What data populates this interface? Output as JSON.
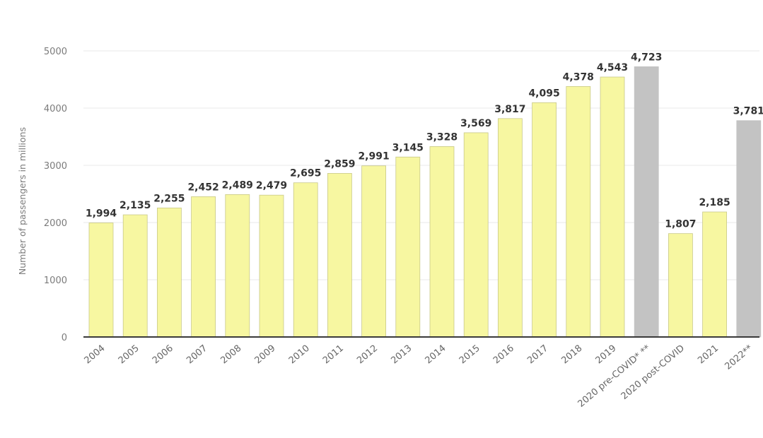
{
  "chart_data": {
    "type": "bar",
    "ylabel": "Number of passengers in millions",
    "ylim": [
      0,
      5000
    ],
    "yticks": [
      0,
      1000,
      2000,
      3000,
      4000,
      5000
    ],
    "grid": true,
    "colors": {
      "actual": "#f7f7a1",
      "actual_edge": "#c9c98a",
      "projected": "#c3c3c3",
      "axis": "#3a3a3a"
    },
    "categories": [
      "2004",
      "2005",
      "2006",
      "2007",
      "2008",
      "2009",
      "2010",
      "2011",
      "2012",
      "2013",
      "2014",
      "2015",
      "2016",
      "2017",
      "2018",
      "2019",
      "2020 pre-COVID* **",
      "2020 post-COVID",
      "2021",
      "2022**"
    ],
    "values": [
      1994,
      2135,
      2255,
      2452,
      2489,
      2479,
      2695,
      2859,
      2991,
      3145,
      3328,
      3569,
      3817,
      4095,
      4378,
      4543,
      4723,
      1807,
      2185,
      3781
    ],
    "value_labels": [
      "1,994",
      "2,135",
      "2,255",
      "2,452",
      "2,489",
      "2,479",
      "2,695",
      "2,859",
      "2,991",
      "3,145",
      "3,328",
      "3,569",
      "3,817",
      "4,095",
      "4,378",
      "4,543",
      "4,723",
      "1,807",
      "2,185",
      "3,781"
    ],
    "projected": [
      false,
      false,
      false,
      false,
      false,
      false,
      false,
      false,
      false,
      false,
      false,
      false,
      false,
      false,
      false,
      false,
      true,
      false,
      false,
      true
    ]
  }
}
